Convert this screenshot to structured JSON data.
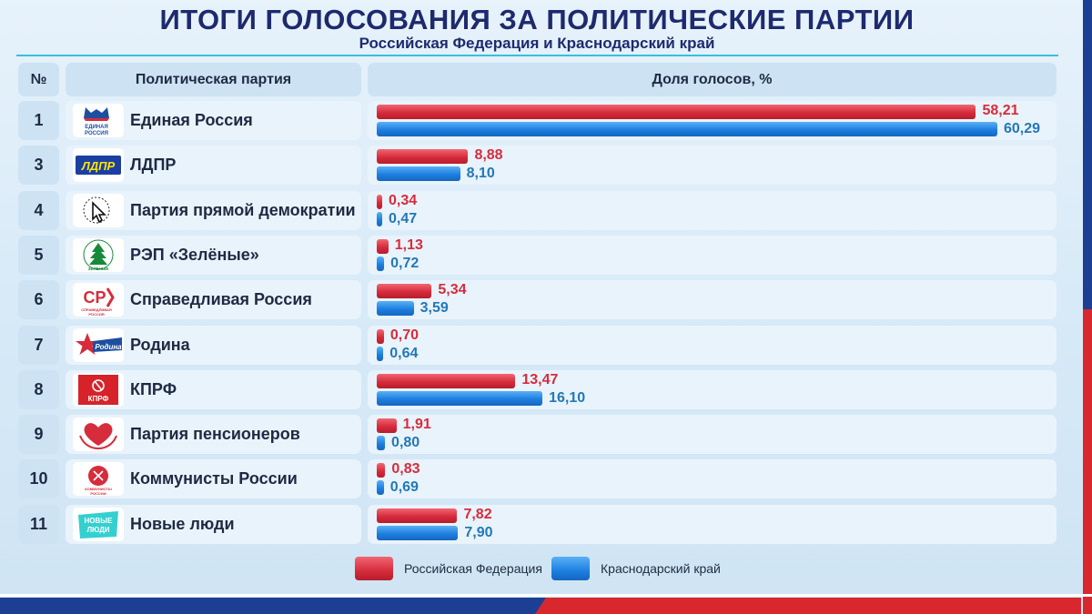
{
  "header": {
    "title": "ИТОГИ ГОЛОСОВАНИЯ ЗА ПОЛИТИЧЕСКИЕ ПАРТИИ",
    "subtitle": "Российская Федерация и Краснодарский край"
  },
  "table": {
    "col_num": "№",
    "col_party": "Политическая партия",
    "col_share": "Доля голосов, %"
  },
  "logos": {
    "er": "ЕДИНАЯ РОССИЯ",
    "ldpr": "ЛДПР",
    "sr": "СР",
    "sr_sub": "СПРАВЕДЛИВАЯ РОССИЯ",
    "rodina": "Родина",
    "kprf": "КПРФ",
    "zel": "ЗЕЛЁНЫЕ",
    "kr": "КОММУНИСТЫ РОССИИ",
    "nl": "НОВЫЕ ЛЮДИ"
  },
  "colors": {
    "rf": "#d62c3c",
    "kk": "#1d7fe0",
    "title": "#1e2a6e"
  },
  "chart_data": {
    "type": "bar",
    "orientation": "horizontal",
    "title": "ИТОГИ ГОЛОСОВАНИЯ ЗА ПОЛИТИЧЕСКИЕ ПАРТИИ",
    "subtitle": "Российская Федерация и Краснодарский край",
    "xlabel": "Доля голосов, %",
    "xlim": [
      0,
      65
    ],
    "legend_position": "bottom",
    "numbers": [
      "1",
      "3",
      "4",
      "5",
      "6",
      "7",
      "8",
      "9",
      "10",
      "11"
    ],
    "categories": [
      "Единая Россия",
      "ЛДПР",
      "Партия прямой демократии",
      "РЭП «Зелёные»",
      "Справедливая Россия",
      "Родина",
      "КПРФ",
      "Партия пенсионеров",
      "Коммунисты России",
      "Новые люди"
    ],
    "series": [
      {
        "name": "Российская Федерация",
        "color": "#d62c3c",
        "values": [
          58.21,
          8.88,
          0.34,
          1.13,
          5.34,
          0.7,
          13.47,
          1.91,
          0.83,
          7.82
        ],
        "labels": [
          "58,21",
          "8,88",
          "0,34",
          "1,13",
          "5,34",
          "0,70",
          "13,47",
          "1,91",
          "0,83",
          "7,82"
        ]
      },
      {
        "name": "Краснодарский край",
        "color": "#1d7fe0",
        "values": [
          60.29,
          8.1,
          0.47,
          0.72,
          3.59,
          0.64,
          16.1,
          0.8,
          0.69,
          7.9
        ],
        "labels": [
          "60,29",
          "8,10",
          "0,47",
          "0,72",
          "3,59",
          "0,64",
          "16,10",
          "0,80",
          "0,69",
          "7,90"
        ]
      }
    ],
    "logo_icons": [
      "edinaya-rossiya-logo-icon",
      "ldpr-logo-icon",
      "ppd-cursor-logo-icon",
      "zelenye-tree-logo-icon",
      "sr-logo-icon",
      "rodina-star-logo-icon",
      "kprf-hammer-sickle-logo-icon",
      "pensioners-heart-logo-icon",
      "kommunisty-logo-icon",
      "novye-lyudi-logo-icon"
    ]
  }
}
